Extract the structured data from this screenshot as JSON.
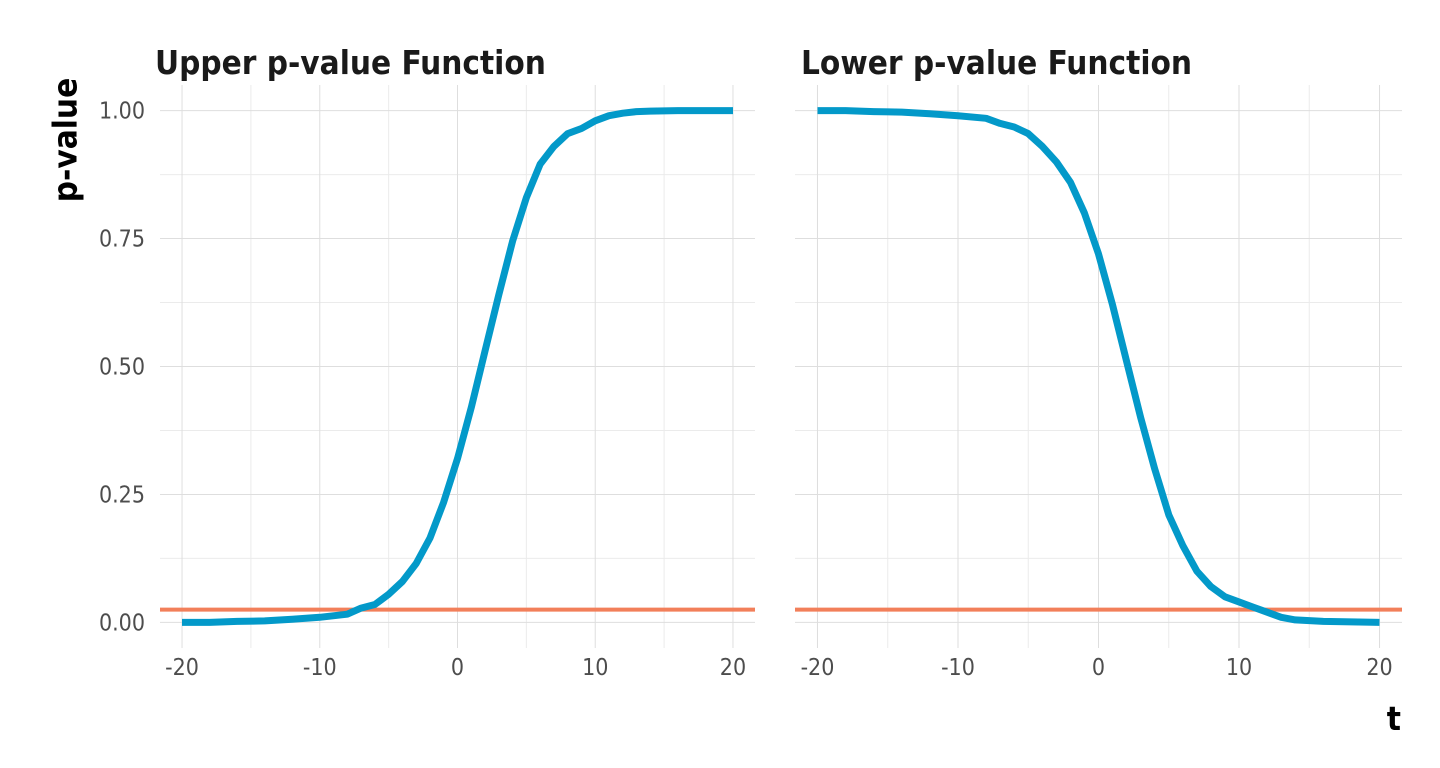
{
  "chart_data": [
    {
      "type": "line",
      "title": "Upper p-value Function",
      "xlabel": "t",
      "ylabel": "p-value",
      "xlim": [
        -21.6,
        21.6
      ],
      "ylim": [
        -0.05,
        1.05
      ],
      "x_ticks": [
        "-20",
        "-10",
        "0",
        "10",
        "20"
      ],
      "y_ticks": [
        "0.00",
        "0.25",
        "0.50",
        "0.75",
        "1.00"
      ],
      "grid": true,
      "series": [
        {
          "color": "#0399C9",
          "x": [
            -20,
            -18,
            -16,
            -14,
            -12,
            -10,
            -8,
            -7,
            -6,
            -5,
            -4,
            -3,
            -2,
            -1,
            0,
            1,
            2,
            3,
            4,
            5,
            6,
            7,
            8,
            9,
            10,
            11,
            12,
            13,
            14,
            16,
            18,
            20
          ],
          "y": [
            0.0,
            0.0,
            0.002,
            0.003,
            0.006,
            0.01,
            0.016,
            0.028,
            0.035,
            0.055,
            0.08,
            0.115,
            0.165,
            0.235,
            0.32,
            0.42,
            0.53,
            0.64,
            0.745,
            0.83,
            0.895,
            0.93,
            0.955,
            0.965,
            0.98,
            0.99,
            0.995,
            0.998,
            0.999,
            1.0,
            1.0,
            1.0
          ]
        }
      ],
      "reference_line": {
        "y": 0.025,
        "color": "#F27F5A"
      }
    },
    {
      "type": "line",
      "title": "Lower p-value Function",
      "xlabel": "t",
      "ylabel": "p-value",
      "xlim": [
        -21.6,
        21.6
      ],
      "ylim": [
        -0.05,
        1.05
      ],
      "x_ticks": [
        "-20",
        "-10",
        "0",
        "10",
        "20"
      ],
      "y_ticks": [
        "0.00",
        "0.25",
        "0.50",
        "0.75",
        "1.00"
      ],
      "grid": true,
      "series": [
        {
          "color": "#0399C9",
          "x": [
            -20,
            -18,
            -16,
            -14,
            -12,
            -10,
            -8,
            -7,
            -6,
            -5,
            -4,
            -3,
            -2,
            -1,
            0,
            1,
            2,
            3,
            4,
            5,
            6,
            7,
            8,
            9,
            10,
            11,
            12,
            13,
            14,
            16,
            18,
            20
          ],
          "y": [
            1.0,
            1.0,
            0.998,
            0.997,
            0.994,
            0.99,
            0.985,
            0.975,
            0.968,
            0.955,
            0.93,
            0.9,
            0.86,
            0.8,
            0.72,
            0.62,
            0.51,
            0.4,
            0.3,
            0.21,
            0.15,
            0.1,
            0.07,
            0.05,
            0.04,
            0.03,
            0.02,
            0.01,
            0.005,
            0.002,
            0.001,
            0.0
          ]
        }
      ],
      "reference_line": {
        "y": 0.025,
        "color": "#F27F5A"
      }
    }
  ]
}
